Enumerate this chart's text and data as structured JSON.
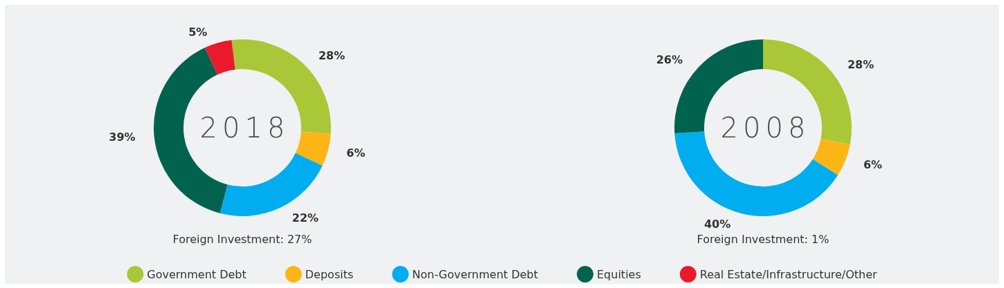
{
  "chart_data": {
    "type": "donut",
    "categories": [
      "Government Debt",
      "Deposits",
      "Non-Government Debt",
      "Equities",
      "Real Estate/Infrastructure/Other"
    ],
    "colors": [
      "#a9c736",
      "#fbb616",
      "#00adee",
      "#01634d",
      "#e81a2c"
    ],
    "series": [
      {
        "name": "2018",
        "values": [
          28,
          6,
          22,
          39,
          5
        ],
        "value_labels": [
          "28%",
          "6%",
          "22%",
          "39%",
          "5%"
        ]
      },
      {
        "name": "2008",
        "values": [
          28,
          6,
          40,
          26,
          null
        ],
        "value_labels": [
          "28%",
          "6%",
          "40%",
          "26%",
          null
        ]
      }
    ],
    "annotations": [
      "Foreign Investment: 27%",
      "Foreign Investment: 1%"
    ],
    "legend": "bottom"
  }
}
